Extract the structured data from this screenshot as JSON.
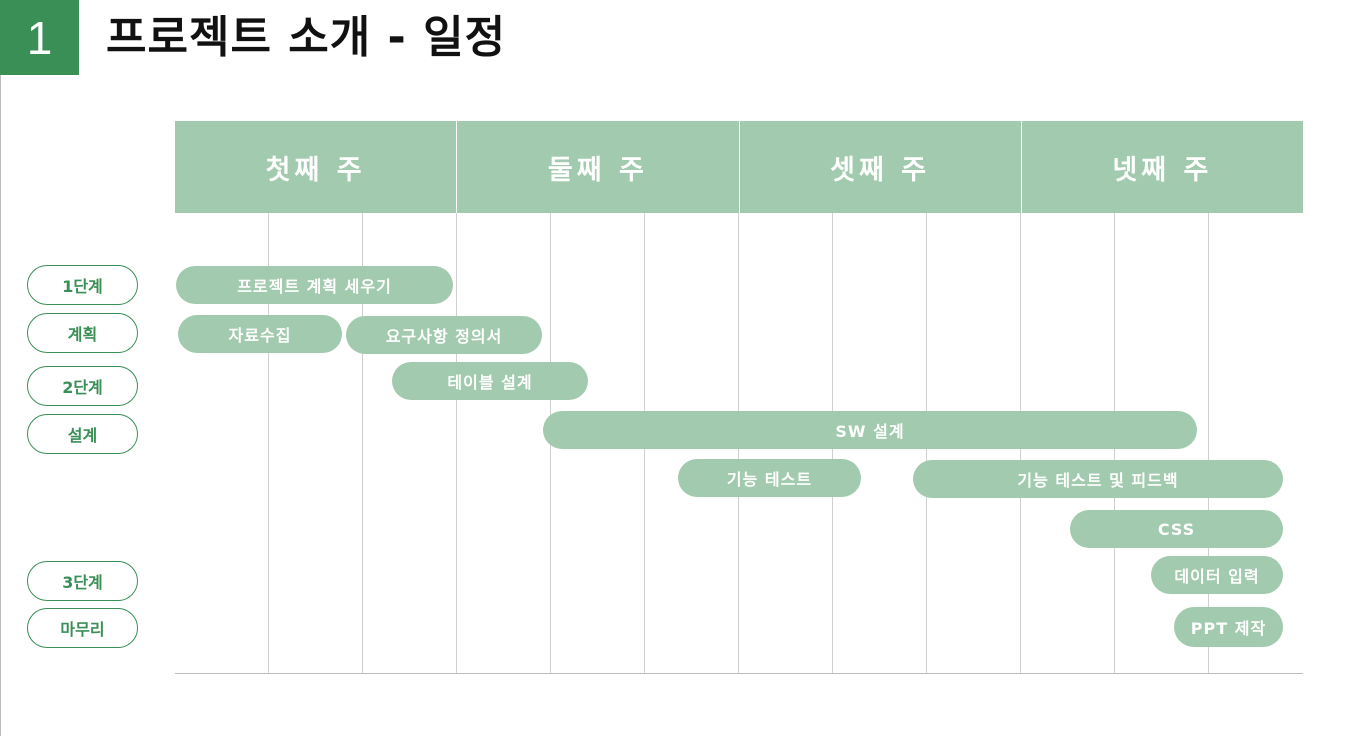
{
  "slide": {
    "number": "1",
    "title": "프로젝트 소개 - 일정"
  },
  "weeks": [
    "첫째 주",
    "둘째 주",
    "셋째 주",
    "넷째 주"
  ],
  "stages": [
    "1단계",
    "계획",
    "2단계",
    "설계",
    "3단계",
    "마무리"
  ],
  "tasks": [
    "프로젝트 계획 세우기",
    "자료수집",
    "요구사항 정의서",
    "테이블 설계",
    "SW 설계",
    "기능 테스트",
    "기능 테스트 및 피드백",
    "CSS",
    "데이터 입력",
    "PPT 제작"
  ],
  "colors": {
    "accent": "#3a8f56",
    "bar": "#a2caae",
    "bar_text": "#ffffff"
  }
}
